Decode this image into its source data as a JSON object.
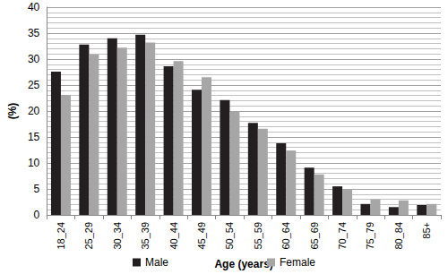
{
  "chart_data": {
    "type": "bar",
    "x_label": "Age (years)",
    "y_label": "(%)",
    "categories": [
      "18_24",
      "25_29",
      "30_34",
      "35_39",
      "40_44",
      "45_49",
      "50_54",
      "55_59",
      "60_64",
      "65_69",
      "70_74",
      "75_79",
      "80_84",
      "85+"
    ],
    "series": [
      {
        "name": "Male",
        "color": "#231f20",
        "values": [
          27.6,
          32.8,
          34.0,
          34.7,
          28.6,
          24.1,
          22.1,
          17.7,
          13.8,
          9.1,
          5.5,
          2.1,
          1.5,
          1.9
        ]
      },
      {
        "name": "Female",
        "color": "#a6a6a6",
        "values": [
          23.1,
          30.9,
          32.2,
          33.2,
          29.6,
          26.5,
          19.9,
          16.6,
          12.4,
          7.8,
          5.0,
          3.0,
          2.8,
          2.1
        ]
      }
    ],
    "ylim": [
      0,
      40
    ],
    "yticks": [
      0,
      5,
      10,
      15,
      20,
      25,
      30,
      35,
      40
    ],
    "grid": true,
    "legend": "bottom"
  }
}
